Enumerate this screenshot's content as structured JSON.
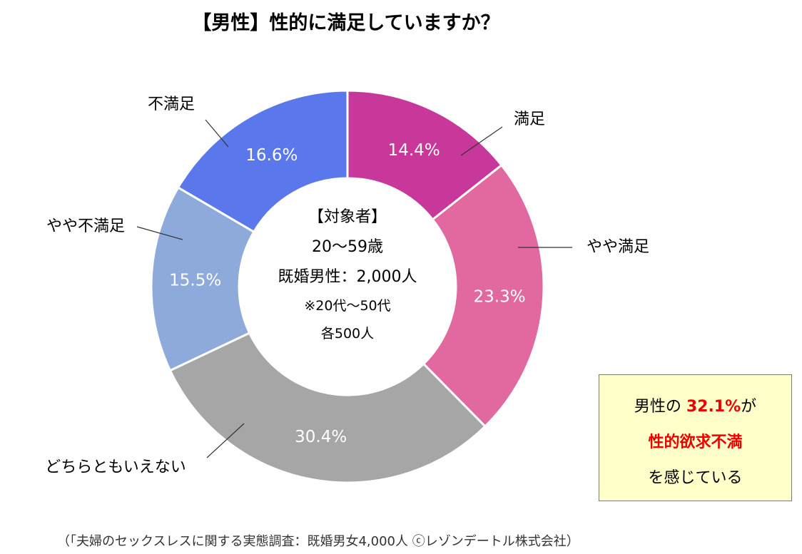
{
  "title": "【男性】性的に満足していますか？",
  "chart_data": {
    "type": "pie",
    "subtype": "donut",
    "title": "【男性】性的に満足していますか？",
    "categories": [
      "満足",
      "やや満足",
      "どちらともいえない",
      "やや不満足",
      "不満足"
    ],
    "values": [
      14.4,
      23.3,
      30.4,
      15.5,
      16.6
    ],
    "unit": "%",
    "colors": [
      "#c8379a",
      "#e2699f",
      "#a6a6a6",
      "#8eaadb",
      "#5b77ec"
    ],
    "data_labels": [
      "14.4%",
      "23.3%",
      "30.4%",
      "15.5%",
      "16.6%"
    ],
    "legend": "labels outside slices"
  },
  "center": {
    "line1": "【対象者】",
    "line2": "20～59歳",
    "line3": "既婚男性：2,000人",
    "line4": "※20代～50代",
    "line5": "各500人"
  },
  "callout": {
    "line1_prefix": "男性の",
    "line1_value": "32.1%",
    "line1_suffix": "が",
    "line2": "性的欲求不満",
    "line3": "を感じている"
  },
  "source": "（「夫婦のセックスレスに関する実態調査：既婚男女4,000人 ⓒレゾンデートル株式会社）"
}
